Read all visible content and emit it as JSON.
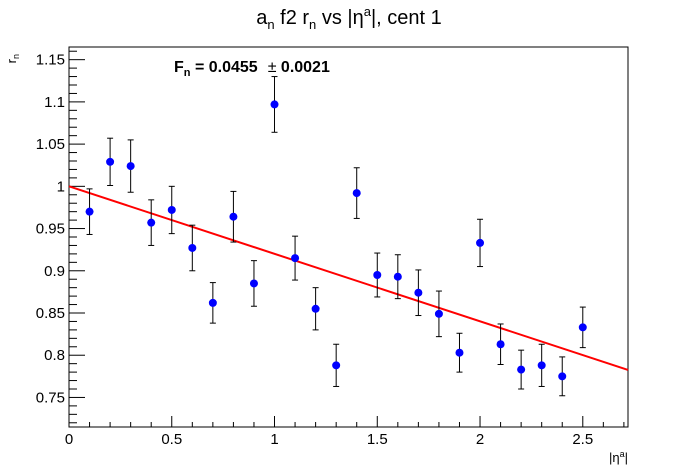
{
  "chart_data": {
    "type": "scatter",
    "title": {
      "main": "a",
      "sub1": "n",
      "mid": " f2 r",
      "sub2": "n",
      "tail1": " vs |η",
      "sup": "a",
      "tail2": "|, cent 1"
    },
    "xlabel": {
      "main": "|η",
      "sup": "a",
      "tail": "|"
    },
    "ylabel": {
      "main": "r",
      "sub": "n"
    },
    "xlim": [
      0,
      2.72
    ],
    "ylim": [
      0.715,
      1.165
    ],
    "x_ticks": [
      0,
      0.5,
      1,
      1.5,
      2,
      2.5
    ],
    "x_tick_labels": [
      "0",
      "0.5",
      "1",
      "1.5",
      "2",
      "2.5"
    ],
    "y_ticks": [
      0.75,
      0.8,
      0.85,
      0.9,
      0.95,
      1.0,
      1.05,
      1.1,
      1.15
    ],
    "y_tick_labels": [
      "0.75",
      "0.8",
      "0.85",
      "0.9",
      "0.95",
      "1",
      "1.05",
      "1.1",
      "1.15"
    ],
    "grid": false,
    "series": [
      {
        "marker_color": "#0000ff",
        "x": [
          0.1,
          0.2,
          0.3,
          0.4,
          0.5,
          0.6,
          0.7,
          0.8,
          0.9,
          1.0,
          1.1,
          1.2,
          1.3,
          1.4,
          1.5,
          1.6,
          1.7,
          1.8,
          1.9,
          2.0,
          2.1,
          2.2,
          2.3,
          2.4,
          2.5
        ],
        "y": [
          0.97,
          1.029,
          1.024,
          0.957,
          0.972,
          0.927,
          0.862,
          0.964,
          0.885,
          1.097,
          0.915,
          0.855,
          0.788,
          0.992,
          0.895,
          0.893,
          0.874,
          0.849,
          0.803,
          0.933,
          0.813,
          0.783,
          0.788,
          0.775,
          0.833
        ],
        "yerr": [
          0.027,
          0.028,
          0.031,
          0.027,
          0.028,
          0.027,
          0.024,
          0.03,
          0.027,
          0.033,
          0.026,
          0.025,
          0.025,
          0.03,
          0.026,
          0.026,
          0.027,
          0.027,
          0.023,
          0.028,
          0.024,
          0.023,
          0.025,
          0.023,
          0.024
        ]
      }
    ],
    "fit_line": {
      "color": "#ff0000",
      "x_start": 0.0,
      "y_start": 1.0,
      "x_end": 2.72,
      "y_end": 0.7826
    },
    "annotation": {
      "label": "F",
      "label_sub": "n",
      "value_text": " = 0.0455",
      "pm": "±",
      "err_text": " 0.0021"
    }
  }
}
